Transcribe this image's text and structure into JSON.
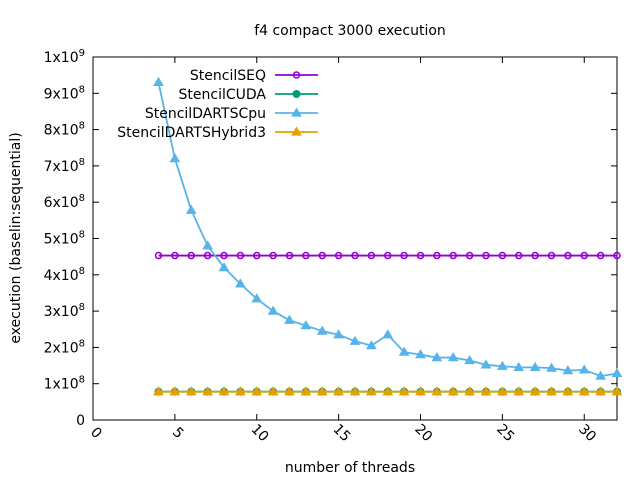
{
  "chart_data": {
    "type": "line",
    "title": "f4 compact 3000 execution",
    "xlabel": "number of threads",
    "ylabel": "execution (baselin:sequential)",
    "xlim": [
      0,
      32
    ],
    "ylim": [
      0,
      1000000000
    ],
    "x_ticks": [
      0,
      5,
      10,
      15,
      20,
      25,
      30
    ],
    "y_ticks": [
      {
        "value": 0,
        "mantissa": "0",
        "exp": ""
      },
      {
        "value": 100000000,
        "mantissa": "1x10",
        "exp": "8"
      },
      {
        "value": 200000000,
        "mantissa": "2x10",
        "exp": "8"
      },
      {
        "value": 300000000,
        "mantissa": "3x10",
        "exp": "8"
      },
      {
        "value": 400000000,
        "mantissa": "4x10",
        "exp": "8"
      },
      {
        "value": 500000000,
        "mantissa": "5x10",
        "exp": "8"
      },
      {
        "value": 600000000,
        "mantissa": "6x10",
        "exp": "8"
      },
      {
        "value": 700000000,
        "mantissa": "7x10",
        "exp": "8"
      },
      {
        "value": 800000000,
        "mantissa": "8x10",
        "exp": "8"
      },
      {
        "value": 900000000,
        "mantissa": "9x10",
        "exp": "8"
      },
      {
        "value": 1000000000,
        "mantissa": "1x10",
        "exp": "9"
      }
    ],
    "grid": false,
    "legend_position": "top-left inside",
    "x": [
      4,
      5,
      6,
      7,
      8,
      9,
      10,
      11,
      12,
      13,
      14,
      15,
      16,
      17,
      18,
      19,
      20,
      21,
      22,
      23,
      24,
      25,
      26,
      27,
      28,
      29,
      30,
      31,
      32
    ],
    "series": [
      {
        "name": "StencilSEQ",
        "color": "#9400d3",
        "marker": "circle-open",
        "values": [
          453000000,
          453000000,
          453000000,
          453000000,
          453000000,
          453000000,
          453000000,
          453000000,
          453000000,
          453000000,
          453000000,
          453000000,
          453000000,
          453000000,
          453000000,
          453000000,
          453000000,
          453000000,
          453000000,
          453000000,
          453000000,
          453000000,
          453000000,
          453000000,
          453000000,
          453000000,
          453000000,
          453000000,
          453000000
        ]
      },
      {
        "name": "StencilCUDA",
        "color": "#009e73",
        "marker": "circle-filled",
        "values": [
          78000000,
          78000000,
          78000000,
          78000000,
          78000000,
          78000000,
          78000000,
          78000000,
          78000000,
          78000000,
          78000000,
          78000000,
          78000000,
          78000000,
          78000000,
          78000000,
          78000000,
          78000000,
          78000000,
          78000000,
          78000000,
          78000000,
          78000000,
          78000000,
          78000000,
          78000000,
          78000000,
          78000000,
          78000000
        ]
      },
      {
        "name": "StencilDARTSCpu",
        "color": "#56b4e9",
        "marker": "triangle-filled",
        "values": [
          930000000,
          720000000,
          578000000,
          480000000,
          420000000,
          375000000,
          334000000,
          300000000,
          275000000,
          260000000,
          245000000,
          235000000,
          217000000,
          205000000,
          235000000,
          187000000,
          180000000,
          172000000,
          172000000,
          164000000,
          152000000,
          148000000,
          145000000,
          145000000,
          143000000,
          136000000,
          138000000,
          121000000,
          128000000
        ]
      },
      {
        "name": "StencilDARTSHybrid3",
        "color": "#e69f00",
        "marker": "triangle-filled",
        "values": [
          78000000,
          78000000,
          78000000,
          78000000,
          78000000,
          78000000,
          78000000,
          78000000,
          78000000,
          78000000,
          78000000,
          78000000,
          78000000,
          78000000,
          78000000,
          78000000,
          78000000,
          78000000,
          78000000,
          78000000,
          78000000,
          78000000,
          78000000,
          78000000,
          78000000,
          78000000,
          78000000,
          78000000,
          78000000
        ]
      }
    ]
  }
}
